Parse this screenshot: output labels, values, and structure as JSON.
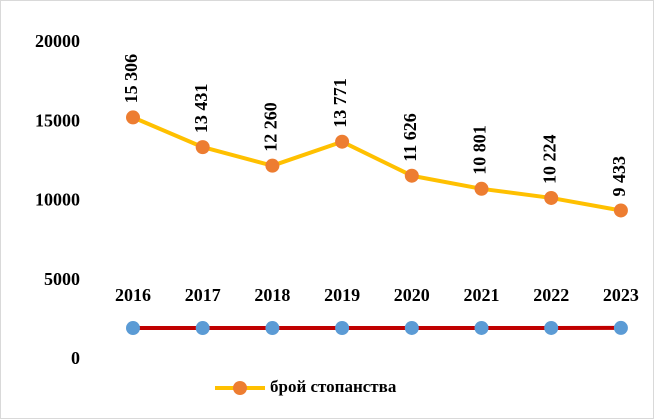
{
  "chart_data": {
    "type": "line",
    "series": [
      {
        "name": "брой стопанства",
        "color": "#ffc000",
        "marker_color": "#ed7d31",
        "values": [
          15306,
          13431,
          12260,
          13771,
          11626,
          10801,
          10224,
          9433
        ],
        "value_labels": [
          "15 306",
          "13 431",
          "12 260",
          "13 771",
          "11 626",
          "10 801",
          "10 224",
          "9 433"
        ]
      },
      {
        "color": "#c00000",
        "marker_color": "#5b9bd5",
        "values": [
          2016,
          2017,
          2018,
          2019,
          2020,
          2021,
          2022,
          2023
        ]
      }
    ],
    "ylim": [
      0,
      20000
    ],
    "yticks": [
      0,
      5000,
      10000,
      15000,
      20000
    ],
    "grid": false
  }
}
